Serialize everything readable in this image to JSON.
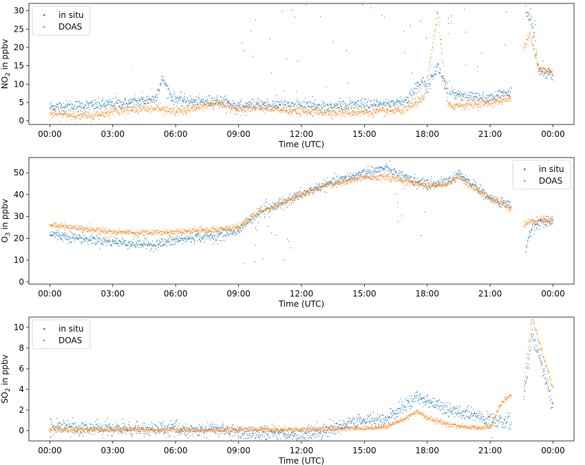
{
  "colors": {
    "in_situ": "#1f77b4",
    "doas": "#ff7f0e"
  },
  "chart_data": [
    {
      "type": "scatter",
      "xlabel": "Time (UTC)",
      "ylabel_main": "NO",
      "ylabel_sub": "2",
      "ylabel_rest": " in ppbv",
      "xlim_hours": [
        -1.0,
        25.0
      ],
      "ylim": [
        -1,
        32
      ],
      "yticks": [
        0,
        5,
        10,
        15,
        20,
        25,
        30
      ],
      "xtick_hours": [
        0,
        3,
        6,
        9,
        12,
        15,
        18,
        21,
        24
      ],
      "xtick_labels": [
        "00:00",
        "03:00",
        "06:00",
        "09:00",
        "12:00",
        "15:00",
        "18:00",
        "21:00",
        "00:00"
      ],
      "legend": {
        "position": "top-left",
        "entries": [
          "in situ",
          "DOAS"
        ]
      },
      "series": [
        {
          "name": "in situ",
          "color_key": "in_situ",
          "gaps": [
            [
              22.0,
              22.7
            ]
          ],
          "profile": [
            [
              0,
              3.8
            ],
            [
              1,
              4.0
            ],
            [
              2,
              4.2
            ],
            [
              3,
              4.5
            ],
            [
              4,
              5.0
            ],
            [
              5,
              6.0
            ],
            [
              5.4,
              11.5
            ],
            [
              5.8,
              6.5
            ],
            [
              6,
              6.0
            ],
            [
              7,
              5.0
            ],
            [
              8,
              5.5
            ],
            [
              9,
              4.0
            ],
            [
              10,
              4.5
            ],
            [
              12,
              4.2
            ],
            [
              14,
              4.0
            ],
            [
              16,
              4.5
            ],
            [
              17,
              5.5
            ],
            [
              17.8,
              11.0
            ],
            [
              18,
              9.0
            ],
            [
              18.5,
              15.0
            ],
            [
              19,
              8.0
            ],
            [
              20,
              6.5
            ],
            [
              21,
              6.0
            ],
            [
              21.5,
              7.0
            ],
            [
              22,
              8.0
            ],
            [
              22.7,
              30.0
            ],
            [
              23,
              27.0
            ],
            [
              23.3,
              14.0
            ],
            [
              24,
              12.5
            ]
          ],
          "noise": 0.8,
          "spike_windows": [
            [
              9.0,
              24.0
            ]
          ],
          "spike_max": 32
        },
        {
          "name": "DOAS",
          "color_key": "doas",
          "gaps": [
            [
              22.0,
              22.6
            ]
          ],
          "profile": [
            [
              0,
              2.0
            ],
            [
              1,
              1.5
            ],
            [
              2,
              1.3
            ],
            [
              3,
              2.5
            ],
            [
              4,
              3.2
            ],
            [
              5,
              3.5
            ],
            [
              6,
              2.5
            ],
            [
              7,
              3.5
            ],
            [
              8,
              5.0
            ],
            [
              9,
              3.0
            ],
            [
              10,
              3.5
            ],
            [
              12,
              2.5
            ],
            [
              14,
              2.3
            ],
            [
              16,
              2.5
            ],
            [
              17,
              3.0
            ],
            [
              17.8,
              6.0
            ],
            [
              18,
              10.0
            ],
            [
              18.5,
              30.0
            ],
            [
              18.8,
              12.0
            ],
            [
              19,
              4.0
            ],
            [
              20,
              4.5
            ],
            [
              21,
              5.0
            ],
            [
              22,
              6.0
            ],
            [
              22.6,
              20.0
            ],
            [
              22.9,
              24.0
            ],
            [
              23.3,
              14.0
            ],
            [
              24,
              13.5
            ]
          ],
          "noise": 0.6,
          "spike_windows": [
            [
              3.0,
              5.0
            ]
          ],
          "spike_max": 15
        }
      ]
    },
    {
      "type": "scatter",
      "xlabel": "Time (UTC)",
      "ylabel_main": "O",
      "ylabel_sub": "3",
      "ylabel_rest": " in ppbv",
      "xlim_hours": [
        -1.0,
        25.0
      ],
      "ylim": [
        -1,
        57
      ],
      "yticks": [
        0,
        10,
        20,
        30,
        40,
        50
      ],
      "xtick_hours": [
        0,
        3,
        6,
        9,
        12,
        15,
        18,
        21,
        24
      ],
      "xtick_labels": [
        "00:00",
        "03:00",
        "06:00",
        "09:00",
        "12:00",
        "15:00",
        "18:00",
        "21:00",
        "00:00"
      ],
      "legend": {
        "position": "top-right",
        "entries": [
          "in situ",
          "DOAS"
        ]
      },
      "series": [
        {
          "name": "in situ",
          "color_key": "in_situ",
          "gaps": [
            [
              22.0,
              22.7
            ]
          ],
          "profile": [
            [
              0,
              22
            ],
            [
              1,
              20.5
            ],
            [
              2,
              19.5
            ],
            [
              3,
              18.5
            ],
            [
              4,
              17.5
            ],
            [
              5,
              17
            ],
            [
              6,
              19
            ],
            [
              7,
              20.5
            ],
            [
              8,
              21
            ],
            [
              9,
              24
            ],
            [
              10,
              32
            ],
            [
              11,
              36
            ],
            [
              12,
              40
            ],
            [
              13,
              44
            ],
            [
              14,
              47
            ],
            [
              15,
              50
            ],
            [
              16,
              52
            ],
            [
              17,
              48
            ],
            [
              18,
              44
            ],
            [
              19,
              46
            ],
            [
              19.5,
              49
            ],
            [
              20,
              46
            ],
            [
              21,
              38
            ],
            [
              22,
              35
            ],
            [
              22.7,
              15
            ],
            [
              23,
              25
            ],
            [
              23.5,
              28
            ],
            [
              24,
              28
            ]
          ],
          "noise": 1.2,
          "drop_windows": [
            [
              9.0,
              11.5
            ],
            [
              16.5,
              18.0
            ]
          ],
          "drop_min": 6
        },
        {
          "name": "DOAS",
          "color_key": "doas",
          "gaps": [
            [
              22.0,
              22.6
            ]
          ],
          "profile": [
            [
              0,
              26
            ],
            [
              1,
              25
            ],
            [
              2,
              24
            ],
            [
              3,
              23
            ],
            [
              4,
              22.5
            ],
            [
              5,
              22.5
            ],
            [
              6,
              23
            ],
            [
              7,
              23.5
            ],
            [
              8,
              24
            ],
            [
              9,
              25
            ],
            [
              10,
              32
            ],
            [
              11,
              36
            ],
            [
              12,
              40
            ],
            [
              13,
              44
            ],
            [
              14,
              46
            ],
            [
              15,
              48
            ],
            [
              16,
              48
            ],
            [
              17,
              46
            ],
            [
              18,
              44
            ],
            [
              19,
              45
            ],
            [
              19.5,
              48
            ],
            [
              20,
              44
            ],
            [
              21,
              39
            ],
            [
              22,
              33
            ],
            [
              22.6,
              26
            ],
            [
              23,
              28
            ],
            [
              24,
              28
            ]
          ],
          "noise": 0.7,
          "drop_windows": [],
          "drop_min": 0
        }
      ]
    },
    {
      "type": "scatter",
      "xlabel": "Time (UTC)",
      "ylabel_main": "SO",
      "ylabel_sub": "2",
      "ylabel_rest": " in ppbv",
      "xlim_hours": [
        -1.0,
        25.0
      ],
      "ylim": [
        -1.0,
        11.0
      ],
      "yticks": [
        0,
        2,
        4,
        6,
        8,
        10
      ],
      "xtick_hours": [
        0,
        3,
        6,
        9,
        12,
        15,
        18,
        21,
        24
      ],
      "xtick_labels": [
        "00:00",
        "03:00",
        "06:00",
        "09:00",
        "12:00",
        "15:00",
        "18:00",
        "21:00",
        "00:00"
      ],
      "legend": {
        "position": "top-left",
        "entries": [
          "in situ",
          "DOAS"
        ]
      },
      "series": [
        {
          "name": "in situ",
          "color_key": "in_situ",
          "gaps": [
            [
              22.0,
              22.6
            ]
          ],
          "profile": [
            [
              0,
              0.3
            ],
            [
              3,
              0.2
            ],
            [
              5,
              0.1
            ],
            [
              6,
              0.2
            ],
            [
              7,
              0
            ],
            [
              8,
              0.2
            ],
            [
              9,
              -0.2
            ],
            [
              10,
              -0.3
            ],
            [
              11,
              -0.2
            ],
            [
              12,
              -0.5
            ],
            [
              13,
              0
            ],
            [
              14,
              0.5
            ],
            [
              15,
              1.0
            ],
            [
              16,
              1.0
            ],
            [
              17,
              2.5
            ],
            [
              17.5,
              3.2
            ],
            [
              18,
              3.0
            ],
            [
              19,
              2.0
            ],
            [
              20,
              1.5
            ],
            [
              21,
              1.0
            ],
            [
              22,
              0.8
            ],
            [
              22.6,
              3.0
            ],
            [
              23,
              9.5
            ],
            [
              23.5,
              6.0
            ],
            [
              24,
              2.5
            ]
          ],
          "noise": 0.35,
          "drop_windows": [],
          "drop_min": 0
        },
        {
          "name": "DOAS",
          "color_key": "doas",
          "gaps": [
            [
              22.0,
              22.6
            ]
          ],
          "profile": [
            [
              0,
              0.1
            ],
            [
              3,
              0.1
            ],
            [
              5,
              0.05
            ],
            [
              6,
              0.1
            ],
            [
              7,
              0
            ],
            [
              8,
              0
            ],
            [
              9,
              0.1
            ],
            [
              10,
              0.1
            ],
            [
              12,
              0.1
            ],
            [
              14,
              0.2
            ],
            [
              16,
              0.3
            ],
            [
              17,
              1.2
            ],
            [
              17.5,
              1.9
            ],
            [
              18,
              1.2
            ],
            [
              19,
              0.6
            ],
            [
              20,
              0.3
            ],
            [
              21,
              0.3
            ],
            [
              21.5,
              2.5
            ],
            [
              22,
              3.5
            ],
            [
              22.6,
              4.0
            ],
            [
              23,
              11.0
            ],
            [
              23.5,
              7.5
            ],
            [
              24,
              4.0
            ]
          ],
          "noise": 0.12,
          "drop_windows": [],
          "drop_min": 0
        }
      ]
    }
  ]
}
